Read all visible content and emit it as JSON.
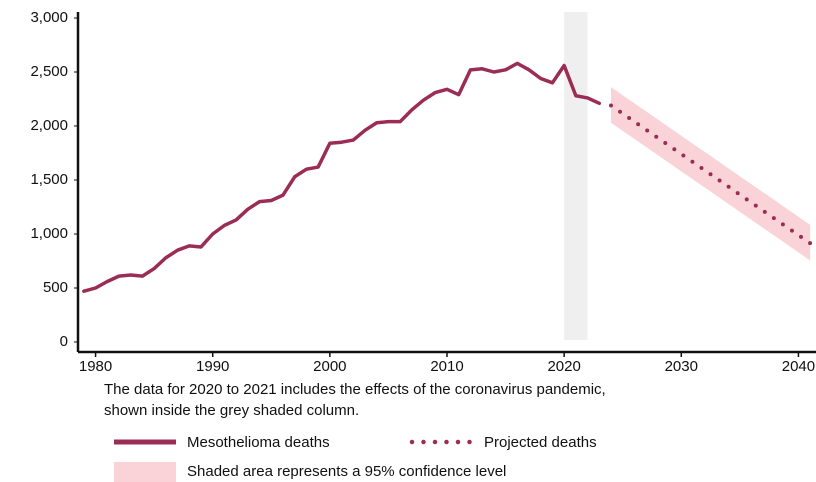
{
  "chart_data": {
    "type": "line",
    "xlim": [
      1978.5,
      2041.5
    ],
    "xticks": [
      1980,
      1990,
      2000,
      2010,
      2020,
      2030,
      2040
    ],
    "ylim": [
      0,
      3000
    ],
    "yticks": [
      0,
      500,
      {
        "value": 1000,
        "label": "1,000"
      },
      {
        "value": 1500,
        "label": "1,500"
      },
      {
        "value": 2000,
        "label": "2,000"
      },
      {
        "value": 2500,
        "label": "2,500"
      },
      {
        "value": 3000,
        "label": "3,000"
      }
    ],
    "shaded_period": [
      2020,
      2022
    ],
    "shaded_color": "#efefef",
    "note": [
      "The data for 2020 to 2021 includes the effects of the coronavirus pandemic,",
      "shown inside the grey shaded column."
    ],
    "band_label": "Shaded area represents a 95% confidence level",
    "band_color": "#f9d3d8",
    "series": [
      {
        "name": "Mesothelioma deaths",
        "color": "#9b2d55",
        "style": "solid",
        "x": [
          1979,
          1980,
          1981,
          1982,
          1983,
          1984,
          1985,
          1986,
          1987,
          1988,
          1989,
          1990,
          1991,
          1992,
          1993,
          1994,
          1995,
          1996,
          1997,
          1998,
          1999,
          2000,
          2001,
          2002,
          2003,
          2004,
          2005,
          2006,
          2007,
          2008,
          2009,
          2010,
          2011,
          2012,
          2013,
          2014,
          2015,
          2016,
          2017,
          2018,
          2019,
          2020,
          2021,
          2022,
          2023
        ],
        "values": [
          470,
          500,
          560,
          610,
          620,
          610,
          680,
          780,
          850,
          890,
          880,
          1000,
          1080,
          1130,
          1230,
          1300,
          1310,
          1360,
          1530,
          1600,
          1620,
          1840,
          1850,
          1870,
          1960,
          2030,
          2040,
          2040,
          2150,
          2240,
          2310,
          2340,
          2290,
          2520,
          2530,
          2500,
          2520,
          2580,
          2520,
          2440,
          2400,
          2560,
          2280,
          2260,
          2210
        ]
      },
      {
        "name": "Projected deaths",
        "color": "#9b2d55",
        "style": "dotted",
        "x": [
          2024,
          2025,
          2026,
          2027,
          2028,
          2029,
          2030,
          2031,
          2032,
          2033,
          2034,
          2035,
          2036,
          2037,
          2038,
          2039,
          2040,
          2041
        ],
        "values": [
          2190,
          2115,
          2040,
          1965,
          1890,
          1815,
          1740,
          1665,
          1590,
          1515,
          1440,
          1365,
          1290,
          1215,
          1140,
          1065,
          990,
          915
        ],
        "upper": [
          2360,
          2285,
          2210,
          2135,
          2060,
          1985,
          1910,
          1835,
          1760,
          1685,
          1610,
          1535,
          1460,
          1385,
          1310,
          1235,
          1160,
          1085
        ],
        "lower": [
          2030,
          1955,
          1880,
          1805,
          1730,
          1655,
          1580,
          1505,
          1430,
          1355,
          1280,
          1205,
          1130,
          1055,
          980,
          905,
          830,
          755
        ]
      }
    ]
  }
}
